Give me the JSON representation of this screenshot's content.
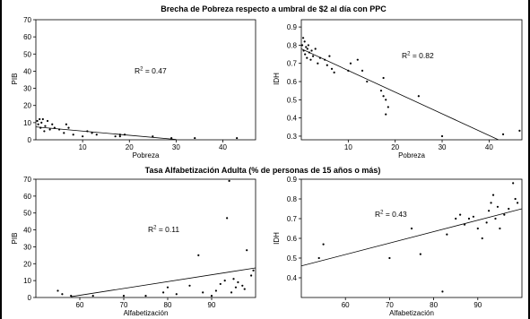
{
  "titles": {
    "top": "Brecha de Pobreza respecto a umbral de $2 al día con PPC",
    "bottom": "Tasa Alfabetización Adulta (% de personas de 15 años o más)"
  },
  "chart_data": [
    {
      "type": "scatter",
      "id": "pib_pobreza",
      "xlabel": "Pobreza",
      "ylabel": "PIB",
      "xlim": [
        0,
        47
      ],
      "ylim": [
        0,
        70
      ],
      "xticks": [
        10,
        20,
        30,
        40
      ],
      "yticks": [
        0,
        10,
        20,
        30,
        40,
        50,
        60,
        70
      ],
      "r2_base": "R",
      "r2_sup": "2",
      "r2_value": " = 0.47",
      "fit": [
        [
          0,
          7.5
        ],
        [
          30,
          0.2
        ]
      ],
      "points": [
        [
          0.3,
          11
        ],
        [
          0.5,
          9
        ],
        [
          0.8,
          12
        ],
        [
          1,
          7
        ],
        [
          1.2,
          10
        ],
        [
          1.5,
          12
        ],
        [
          1.8,
          5
        ],
        [
          2,
          8
        ],
        [
          2.5,
          11
        ],
        [
          3,
          6
        ],
        [
          3.5,
          9
        ],
        [
          4,
          7
        ],
        [
          5,
          6
        ],
        [
          6,
          4
        ],
        [
          6.5,
          9
        ],
        [
          7,
          7
        ],
        [
          8,
          3
        ],
        [
          10,
          2
        ],
        [
          11,
          5
        ],
        [
          12,
          4
        ],
        [
          13,
          3
        ],
        [
          17,
          2
        ],
        [
          18,
          2
        ],
        [
          18,
          3
        ],
        [
          19,
          3
        ],
        [
          25,
          2
        ],
        [
          29,
          1
        ],
        [
          34,
          1
        ],
        [
          43,
          1
        ]
      ]
    },
    {
      "type": "scatter",
      "id": "idh_pobreza",
      "xlabel": "Pobreza",
      "ylabel": "IDH",
      "xlim": [
        0,
        47
      ],
      "ylim": [
        0.28,
        0.94
      ],
      "xticks": [
        10,
        20,
        30,
        40
      ],
      "yticks": [
        0.3,
        0.4,
        0.5,
        0.6,
        0.7,
        0.8,
        0.9
      ],
      "r2_base": "R",
      "r2_sup": "2",
      "r2_value": " = 0.82",
      "fit": [
        [
          0,
          0.78
        ],
        [
          42,
          0.28
        ]
      ],
      "points": [
        [
          0.2,
          0.8
        ],
        [
          0.4,
          0.84
        ],
        [
          0.5,
          0.77
        ],
        [
          0.7,
          0.82
        ],
        [
          0.8,
          0.75
        ],
        [
          1,
          0.79
        ],
        [
          1.2,
          0.73
        ],
        [
          1.3,
          0.78
        ],
        [
          1.5,
          0.8
        ],
        [
          1.7,
          0.76
        ],
        [
          2,
          0.72
        ],
        [
          2.2,
          0.77
        ],
        [
          2.5,
          0.74
        ],
        [
          3,
          0.78
        ],
        [
          3.5,
          0.7
        ],
        [
          4,
          0.73
        ],
        [
          5,
          0.72
        ],
        [
          5.5,
          0.69
        ],
        [
          6,
          0.74
        ],
        [
          6.5,
          0.67
        ],
        [
          7,
          0.65
        ],
        [
          10,
          0.66
        ],
        [
          10.5,
          0.7
        ],
        [
          12,
          0.72
        ],
        [
          13,
          0.66
        ],
        [
          14,
          0.6
        ],
        [
          17,
          0.55
        ],
        [
          17.5,
          0.52
        ],
        [
          17.5,
          0.62
        ],
        [
          18,
          0.5
        ],
        [
          18,
          0.42
        ],
        [
          18.5,
          0.46
        ],
        [
          25,
          0.52
        ],
        [
          30,
          0.3
        ],
        [
          43,
          0.31
        ],
        [
          46.5,
          0.33
        ]
      ]
    },
    {
      "type": "scatter",
      "id": "pib_alfabetizacion",
      "xlabel": "Alfabetización",
      "ylabel": "PIB",
      "xlim": [
        50,
        100
      ],
      "ylim": [
        0,
        70
      ],
      "xticks": [
        60,
        70,
        80,
        90
      ],
      "yticks": [
        0,
        10,
        20,
        30,
        40,
        50,
        60,
        70
      ],
      "r2_base": "R",
      "r2_sup": "2",
      "r2_value": " = 0.11",
      "fit": [
        [
          58,
          0.5
        ],
        [
          100,
          17.5
        ]
      ],
      "points": [
        [
          55,
          4
        ],
        [
          56,
          2
        ],
        [
          58,
          1
        ],
        [
          63,
          1
        ],
        [
          70,
          1
        ],
        [
          75,
          1
        ],
        [
          79,
          3
        ],
        [
          80,
          6
        ],
        [
          82,
          2
        ],
        [
          85,
          7
        ],
        [
          87,
          25
        ],
        [
          88,
          3
        ],
        [
          90,
          1
        ],
        [
          91,
          4
        ],
        [
          92,
          8
        ],
        [
          93,
          10
        ],
        [
          93.5,
          47
        ],
        [
          94,
          69
        ],
        [
          94.5,
          3
        ],
        [
          95,
          11
        ],
        [
          95.5,
          6
        ],
        [
          96,
          9
        ],
        [
          97,
          7
        ],
        [
          97.5,
          5
        ],
        [
          98,
          28
        ],
        [
          99,
          13
        ],
        [
          99.5,
          16
        ]
      ]
    },
    {
      "type": "scatter",
      "id": "idh_alfabetizacion",
      "xlabel": "Alfabetización",
      "ylabel": "IDH",
      "xlim": [
        50,
        100
      ],
      "ylim": [
        0.3,
        0.9
      ],
      "xticks": [
        60,
        70,
        80,
        90
      ],
      "yticks": [
        0.4,
        0.5,
        0.6,
        0.7,
        0.8,
        0.9
      ],
      "r2_base": "R",
      "r2_sup": "2",
      "r2_value": " = 0.43",
      "fit": [
        [
          50,
          0.46
        ],
        [
          100,
          0.75
        ]
      ],
      "points": [
        [
          54,
          0.5
        ],
        [
          55,
          0.57
        ],
        [
          70,
          0.5
        ],
        [
          75,
          0.65
        ],
        [
          77,
          0.52
        ],
        [
          82,
          0.33
        ],
        [
          83,
          0.62
        ],
        [
          85,
          0.7
        ],
        [
          86,
          0.72
        ],
        [
          87,
          0.67
        ],
        [
          88,
          0.7
        ],
        [
          89,
          0.71
        ],
        [
          90,
          0.65
        ],
        [
          91,
          0.6
        ],
        [
          92,
          0.68
        ],
        [
          92.5,
          0.74
        ],
        [
          93,
          0.78
        ],
        [
          93.5,
          0.82
        ],
        [
          94,
          0.7
        ],
        [
          94.5,
          0.76
        ],
        [
          95,
          0.65
        ],
        [
          96,
          0.72
        ],
        [
          97,
          0.75
        ],
        [
          98,
          0.88
        ],
        [
          98.5,
          0.8
        ],
        [
          99,
          0.78
        ]
      ]
    }
  ]
}
